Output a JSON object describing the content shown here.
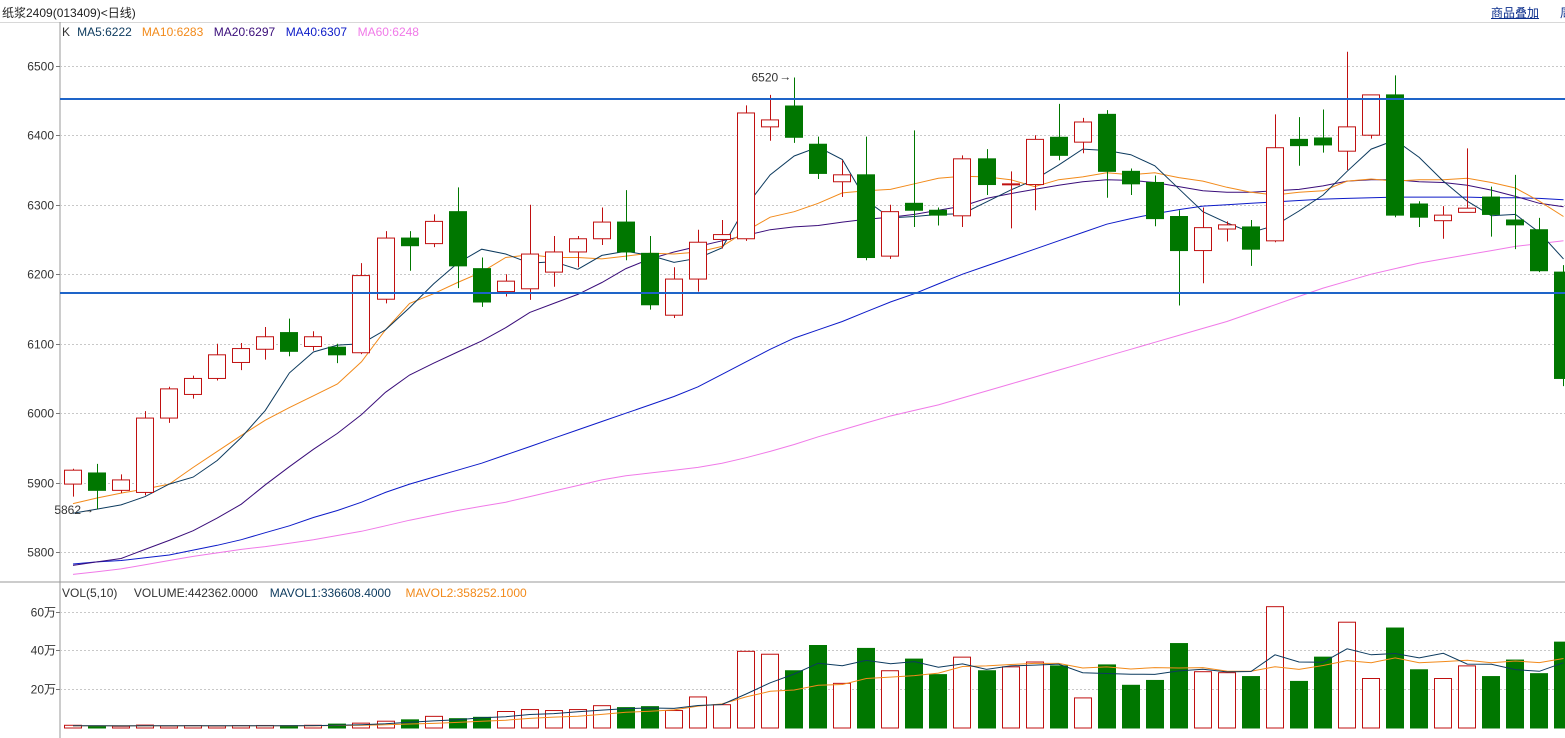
{
  "header": {
    "title": "纸浆2409(013409)<日线)",
    "overlay_link": "商品叠加",
    "extra_link": "周"
  },
  "colors": {
    "up": "#c01010",
    "down": "#007700",
    "ma5": "#0c3a5e",
    "ma10": "#f28a1a",
    "ma20": "#3a0d7a",
    "ma40": "#0c1ac8",
    "ma60": "#f07ae8",
    "hline": "#1e64c8"
  },
  "chart_data": [
    {
      "type": "candlestick",
      "legend": [
        {
          "label": "K",
          "color": "#333333"
        },
        {
          "label": "MA5:6222",
          "color": "#0c3a5e"
        },
        {
          "label": "MA10:6283",
          "color": "#f28a1a"
        },
        {
          "label": "MA20:6297",
          "color": "#3a0d7a"
        },
        {
          "label": "MA40:6307",
          "color": "#0c1ac8"
        },
        {
          "label": "MA60:6248",
          "color": "#f07ae8"
        }
      ],
      "y_ticks": [
        5800,
        5900,
        6000,
        6100,
        6200,
        6300,
        6400,
        6500
      ],
      "ylim": [
        5760,
        6560
      ],
      "grid": true,
      "horizontal_lines": [
        6452,
        6173
      ],
      "annotations": [
        {
          "text": "6520",
          "index": 30
        },
        {
          "text": "5862",
          "index": 1
        }
      ],
      "candles": [
        [
          5898,
          5918,
          5920,
          5880
        ],
        [
          5914,
          5889,
          5927,
          5862
        ],
        [
          5889,
          5904,
          5912,
          5885
        ],
        [
          5886,
          5993,
          6003,
          5882
        ],
        [
          5993,
          6035,
          6038,
          5986
        ],
        [
          6027,
          6050,
          6054,
          6021
        ],
        [
          6050,
          6084,
          6100,
          6047
        ],
        [
          6073,
          6093,
          6101,
          6062
        ],
        [
          6092,
          6110,
          6124,
          6077
        ],
        [
          6116,
          6089,
          6136,
          6082
        ],
        [
          6096,
          6110,
          6118,
          6090
        ],
        [
          6095,
          6084,
          6100,
          6072
        ],
        [
          6087,
          6198,
          6216,
          6085
        ],
        [
          6164,
          6252,
          6262,
          6158
        ],
        [
          6252,
          6241,
          6262,
          6205
        ],
        [
          6244,
          6276,
          6286,
          6239
        ],
        [
          6290,
          6212,
          6325,
          6180
        ],
        [
          6208,
          6160,
          6224,
          6153
        ],
        [
          6175,
          6190,
          6200,
          6168
        ],
        [
          6179,
          6229,
          6300,
          6163
        ],
        [
          6203,
          6232,
          6255,
          6182
        ],
        [
          6232,
          6251,
          6255,
          6210
        ],
        [
          6251,
          6275,
          6296,
          6242
        ],
        [
          6275,
          6232,
          6321,
          6220
        ],
        [
          6230,
          6156,
          6255,
          6149
        ],
        [
          6141,
          6193,
          6210,
          6137
        ],
        [
          6193,
          6246,
          6264,
          6175
        ],
        [
          6250,
          6257,
          6278,
          6237
        ],
        [
          6251,
          6432,
          6443,
          6248
        ],
        [
          6412,
          6422,
          6458,
          6392
        ],
        [
          6442,
          6397,
          6483,
          6389
        ],
        [
          6387,
          6345,
          6398,
          6337
        ],
        [
          6333,
          6343,
          6364,
          6311
        ],
        [
          6343,
          6224,
          6398,
          6220
        ],
        [
          6226,
          6290,
          6300,
          6222
        ],
        [
          6302,
          6292,
          6407,
          6268
        ],
        [
          6292,
          6285,
          6296,
          6270
        ],
        [
          6284,
          6366,
          6371,
          6268
        ],
        [
          6366,
          6329,
          6380,
          6314
        ],
        [
          6329,
          6330,
          6348,
          6266
        ],
        [
          6329,
          6394,
          6400,
          6292
        ],
        [
          6397,
          6371,
          6445,
          6364
        ],
        [
          6390,
          6419,
          6425,
          6374
        ],
        [
          6430,
          6348,
          6436,
          6310
        ],
        [
          6348,
          6330,
          6352,
          6314
        ],
        [
          6332,
          6280,
          6342,
          6269
        ],
        [
          6283,
          6234,
          6292,
          6155
        ],
        [
          6234,
          6267,
          6296,
          6187
        ],
        [
          6265,
          6271,
          6276,
          6247
        ],
        [
          6268,
          6236,
          6278,
          6212
        ],
        [
          6248,
          6382,
          6430,
          6246
        ],
        [
          6394,
          6385,
          6426,
          6356
        ],
        [
          6396,
          6386,
          6437,
          6375
        ],
        [
          6377,
          6412,
          6520,
          6350
        ],
        [
          6400,
          6458,
          6458,
          6395
        ],
        [
          6458,
          6285,
          6486,
          6282
        ],
        [
          6301,
          6282,
          6305,
          6268
        ],
        [
          6277,
          6285,
          6298,
          6251
        ],
        [
          6289,
          6295,
          6381,
          6289
        ],
        [
          6311,
          6286,
          6326,
          6254
        ],
        [
          6278,
          6271,
          6343,
          6236
        ],
        [
          6264,
          6205,
          6281,
          6203
        ],
        [
          6203,
          6050,
          6213,
          6039
        ]
      ],
      "ma5": [
        5856,
        5862,
        5868,
        5880,
        5898,
        5908,
        5932,
        5965,
        6004,
        6058,
        6088,
        6098,
        6100,
        6120,
        6152,
        6186,
        6216,
        6236,
        6229,
        6216,
        6218,
        6207,
        6227,
        6233,
        6227,
        6217,
        6223,
        6238,
        6298,
        6343,
        6370,
        6383,
        6365,
        6306,
        6281,
        6283,
        6286,
        6287,
        6304,
        6321,
        6336,
        6357,
        6380,
        6378,
        6372,
        6356,
        6323,
        6290,
        6274,
        6260,
        6270,
        6291,
        6314,
        6348,
        6380,
        6393,
        6368,
        6334,
        6305,
        6284,
        6286,
        6260,
        6222
      ],
      "ma10": [
        5870,
        5878,
        5885,
        5891,
        5898,
        5922,
        5945,
        5968,
        5990,
        6008,
        6025,
        6042,
        6074,
        6120,
        6158,
        6172,
        6188,
        6203,
        6224,
        6228,
        6224,
        6224,
        6222,
        6226,
        6230,
        6229,
        6232,
        6240,
        6262,
        6282,
        6290,
        6302,
        6317,
        6320,
        6322,
        6330,
        6338,
        6341,
        6340,
        6336,
        6326,
        6336,
        6340,
        6346,
        6343,
        6346,
        6339,
        6334,
        6325,
        6318,
        6314,
        6318,
        6320,
        6334,
        6337,
        6334,
        6336,
        6336,
        6338,
        6332,
        6324,
        6305,
        6283
      ],
      "ma20": [
        5781,
        5786,
        5791,
        5804,
        5817,
        5831,
        5849,
        5869,
        5897,
        5923,
        5948,
        5971,
        5998,
        6030,
        6055,
        6072,
        6088,
        6104,
        6123,
        6145,
        6158,
        6171,
        6188,
        6208,
        6222,
        6232,
        6240,
        6248,
        6256,
        6264,
        6268,
        6270,
        6275,
        6279,
        6282,
        6286,
        6292,
        6298,
        6309,
        6316,
        6322,
        6328,
        6333,
        6336,
        6335,
        6332,
        6326,
        6320,
        6318,
        6318,
        6320,
        6322,
        6327,
        6334,
        6336,
        6336,
        6333,
        6332,
        6328,
        6321,
        6312,
        6302,
        6297
      ],
      "ma40": [
        5783,
        5786,
        5788,
        5792,
        5796,
        5803,
        5810,
        5818,
        5828,
        5838,
        5850,
        5860,
        5872,
        5886,
        5898,
        5908,
        5918,
        5928,
        5940,
        5952,
        5964,
        5976,
        5988,
        6000,
        6012,
        6024,
        6038,
        6056,
        6074,
        6092,
        6108,
        6120,
        6132,
        6146,
        6160,
        6172,
        6186,
        6200,
        6212,
        6224,
        6236,
        6248,
        6260,
        6272,
        6280,
        6287,
        6293,
        6298,
        6300,
        6302,
        6304,
        6306,
        6308,
        6309,
        6310,
        6311,
        6311,
        6311,
        6311,
        6310,
        6310,
        6309,
        6307
      ],
      "ma60": [
        5768,
        5772,
        5776,
        5782,
        5788,
        5794,
        5799,
        5804,
        5808,
        5813,
        5818,
        5824,
        5830,
        5838,
        5846,
        5853,
        5860,
        5866,
        5872,
        5880,
        5888,
        5896,
        5904,
        5910,
        5914,
        5918,
        5922,
        5928,
        5936,
        5945,
        5955,
        5966,
        5976,
        5986,
        5996,
        6004,
        6012,
        6022,
        6032,
        6042,
        6052,
        6062,
        6072,
        6082,
        6092,
        6102,
        6112,
        6122,
        6132,
        6144,
        6156,
        6168,
        6180,
        6190,
        6200,
        6208,
        6216,
        6222,
        6228,
        6234,
        6240,
        6244,
        6248
      ]
    },
    {
      "type": "bar",
      "legend": [
        {
          "label": "VOL(5,10)",
          "color": "#333333"
        },
        {
          "label": "VOLUME:442362.0000",
          "color": "#333333"
        },
        {
          "label": "MAVOL1:336608.4000",
          "color": "#0c3a5e"
        },
        {
          "label": "MAVOL2:358252.1000",
          "color": "#f28a1a"
        }
      ],
      "y_ticks": [
        {
          "value": 200000,
          "label": "20万"
        },
        {
          "value": 400000,
          "label": "40万"
        },
        {
          "value": 600000,
          "label": "60万"
        }
      ],
      "ylim": [
        0,
        680000
      ],
      "volume": [
        14000,
        10000,
        9000,
        15000,
        10000,
        12000,
        10000,
        12000,
        13000,
        12000,
        14000,
        20000,
        25000,
        35000,
        42000,
        60000,
        48000,
        55000,
        85000,
        95000,
        90000,
        95000,
        115000,
        105000,
        110000,
        90000,
        160000,
        120000,
        395000,
        380000,
        295000,
        425000,
        230000,
        410000,
        295000,
        355000,
        275000,
        365000,
        295000,
        315000,
        340000,
        320000,
        155000,
        325000,
        220000,
        245000,
        435000,
        290000,
        285000,
        265000,
        625000,
        240000,
        365000,
        545000,
        255000,
        515000,
        300000,
        255000,
        320000,
        265000,
        350000,
        280000,
        442362
      ],
      "mavol1": [
        12000,
        12000,
        11000,
        11500,
        11600,
        11200,
        11200,
        11800,
        11400,
        11800,
        12200,
        14200,
        16800,
        21400,
        29200,
        36400,
        42000,
        53000,
        58000,
        69600,
        74000,
        84000,
        92000,
        100000,
        103000,
        101000,
        116000,
        121000,
        175000,
        233000,
        278000,
        334000,
        321000,
        348000,
        331000,
        342000,
        313000,
        330000,
        302000,
        320000,
        324000,
        329000,
        285000,
        281000,
        277000,
        276000,
        294000,
        303000,
        289000,
        291000,
        377000,
        340000,
        339000,
        408000,
        377000,
        384000,
        361000,
        385000,
        329000,
        328000,
        301000,
        292000,
        336608
      ],
      "mavol2": [
        12000,
        12000,
        12000,
        12000,
        12000,
        12000,
        11800,
        12000,
        11600,
        11800,
        11800,
        12700,
        14000,
        16600,
        20400,
        23800,
        28600,
        34800,
        40300,
        49400,
        55900,
        61000,
        70000,
        80700,
        86600,
        93300,
        113000,
        124000,
        160000,
        189000,
        196000,
        220000,
        224000,
        255000,
        262000,
        270000,
        283000,
        317000,
        320000,
        327000,
        333000,
        333000,
        309000,
        315000,
        304000,
        311000,
        309000,
        311000,
        293000,
        292000,
        316000,
        302000,
        322000,
        347000,
        336000,
        361000,
        336000,
        342000,
        349000,
        336000,
        345000,
        337000,
        358252
      ]
    }
  ]
}
